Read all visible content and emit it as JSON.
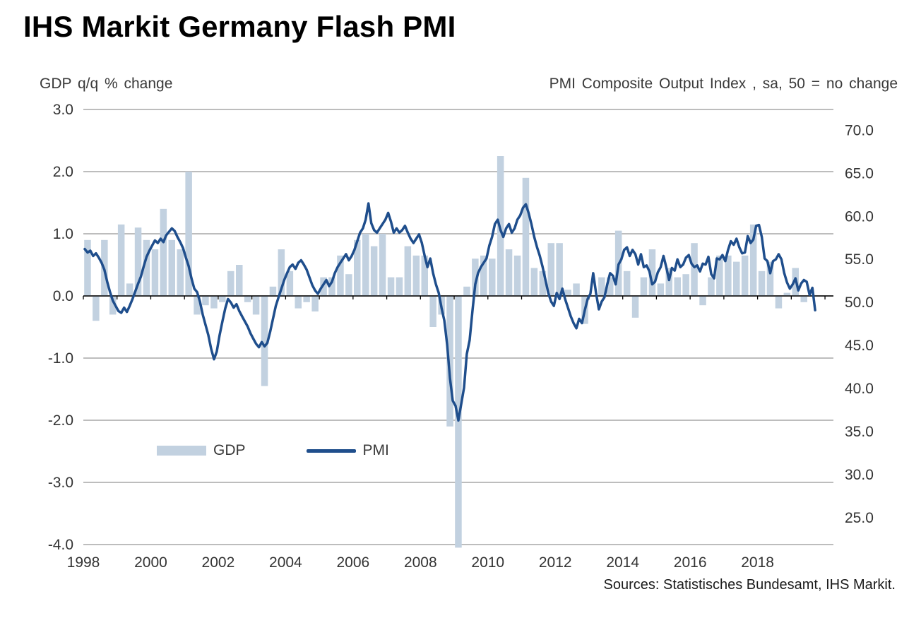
{
  "colors": {
    "bar": "#c2d1e0",
    "line": "#1f4e8c",
    "grid": "#bdbdbd",
    "axis": "#000000",
    "text": "#333333"
  },
  "chart_data": {
    "type": "combo_bar_line",
    "title": "IHS Markit Germany Flash PMI",
    "source": "Sources: Statistisches Bundesamt, IHS Markit.",
    "legend_position": "inside-lower-left",
    "grid": "horizontal",
    "left_axis": {
      "header": "GDP q/q % change",
      "min": -4,
      "max": 3,
      "step": 1
    },
    "right_axis": {
      "header": "PMI Composite Output Index , sa, 50 = no change",
      "min_label": 25,
      "max_label": 70,
      "step": 5,
      "plot_min": 21.9,
      "plot_max": 72.4
    },
    "x_axis": {
      "min": 1998,
      "max": 2020.25,
      "labels": [
        "1998",
        "2000",
        "2002",
        "2004",
        "2006",
        "2008",
        "2010",
        "2012",
        "2014",
        "2016",
        "2018"
      ]
    },
    "series": [
      {
        "name": "GDP",
        "type": "bar",
        "axis": "left",
        "frequency": "quarterly",
        "start": "1998Q1",
        "values": [
          0.9,
          -0.4,
          0.9,
          -0.3,
          1.15,
          0.2,
          1.1,
          0.9,
          0.75,
          1.4,
          0.9,
          0.75,
          2.0,
          -0.3,
          -0.15,
          -0.2,
          -0.1,
          0.4,
          0.5,
          -0.1,
          -0.3,
          -1.45,
          0.15,
          0.75,
          0.4,
          -0.2,
          -0.1,
          -0.25,
          0.3,
          0.3,
          0.65,
          0.35,
          0.9,
          1.0,
          0.8,
          1.0,
          0.3,
          0.3,
          0.8,
          0.65,
          0.65,
          -0.5,
          -0.3,
          -2.1,
          -4.05,
          0.15,
          0.6,
          0.65,
          0.6,
          2.25,
          0.75,
          0.65,
          1.9,
          0.45,
          0.4,
          0.85,
          0.85,
          0.1,
          0.2,
          -0.45,
          0.0,
          0.3,
          0.3,
          1.05,
          0.4,
          -0.35,
          0.3,
          0.75,
          0.2,
          0.45,
          0.3,
          0.35,
          0.85,
          -0.15,
          0.3,
          0.65,
          0.65,
          0.55,
          0.65,
          1.15,
          0.4,
          0.55,
          -0.2,
          0.05,
          0.45,
          -0.1
        ]
      },
      {
        "name": "PMI",
        "type": "line",
        "axis": "right",
        "frequency": "monthly",
        "start": "1998M01",
        "values": [
          56.2,
          55.8,
          56.0,
          55.4,
          55.7,
          55.2,
          54.6,
          53.8,
          52.4,
          51.2,
          50.2,
          49.6,
          49.0,
          48.8,
          49.4,
          48.9,
          49.6,
          50.4,
          51.3,
          52.2,
          53.0,
          54.2,
          55.3,
          56.0,
          56.6,
          57.2,
          56.9,
          57.4,
          57.0,
          57.8,
          58.2,
          58.6,
          58.3,
          57.6,
          57.0,
          56.3,
          55.2,
          54.2,
          52.8,
          51.6,
          51.2,
          50.1,
          48.6,
          47.4,
          46.2,
          44.6,
          43.4,
          44.3,
          46.2,
          47.8,
          49.3,
          50.4,
          50.0,
          49.4,
          49.8,
          49.0,
          48.4,
          47.8,
          47.2,
          46.4,
          45.8,
          45.2,
          44.8,
          45.4,
          44.9,
          45.3,
          46.6,
          48.1,
          49.6,
          50.6,
          51.6,
          52.6,
          53.4,
          54.1,
          54.4,
          53.9,
          54.6,
          54.9,
          54.4,
          53.8,
          52.9,
          52.0,
          51.4,
          51.0,
          51.6,
          52.1,
          52.6,
          51.9,
          52.4,
          53.4,
          54.1,
          54.6,
          55.1,
          55.6,
          54.9,
          55.4,
          56.1,
          57.1,
          58.1,
          58.6,
          59.6,
          61.5,
          59.2,
          58.4,
          58.1,
          58.6,
          59.1,
          59.6,
          60.4,
          59.4,
          58.1,
          58.6,
          58.1,
          58.4,
          58.9,
          58.1,
          57.4,
          56.9,
          57.4,
          57.9,
          56.9,
          55.4,
          54.1,
          55.1,
          53.4,
          52.1,
          51.1,
          49.4,
          47.9,
          45.1,
          41.2,
          38.6,
          38.0,
          36.3,
          38.2,
          40.1,
          44.0,
          45.6,
          49.0,
          52.1,
          53.4,
          54.1,
          54.6,
          55.1,
          56.6,
          57.6,
          59.1,
          59.6,
          58.4,
          57.6,
          58.6,
          59.1,
          58.1,
          58.6,
          59.6,
          60.1,
          61.0,
          61.4,
          60.4,
          59.1,
          57.6,
          56.4,
          55.4,
          54.1,
          52.6,
          51.1,
          50.1,
          49.6,
          51.1,
          50.4,
          51.6,
          50.4,
          49.4,
          48.4,
          47.6,
          47.0,
          48.1,
          47.6,
          49.1,
          50.4,
          51.0,
          53.4,
          51.1,
          49.2,
          50.1,
          50.6,
          52.1,
          53.4,
          53.1,
          52.1,
          54.4,
          55.0,
          56.1,
          56.4,
          55.4,
          56.1,
          55.6,
          54.4,
          55.6,
          54.1,
          54.3,
          53.6,
          52.1,
          52.4,
          53.5,
          54.1,
          55.4,
          54.1,
          52.6,
          54.0,
          53.7,
          55.0,
          54.1,
          54.4,
          55.2,
          55.5,
          54.5,
          54.1,
          54.3,
          53.6,
          54.5,
          54.4,
          55.3,
          53.3,
          52.8,
          55.1,
          55.0,
          55.5,
          54.8,
          56.1,
          57.1,
          56.7,
          57.4,
          56.4,
          55.7,
          55.8,
          57.7,
          56.9,
          57.3,
          58.9,
          59.0,
          57.6,
          55.1,
          54.8,
          53.4,
          54.8,
          55.0,
          55.6,
          55.0,
          53.4,
          52.3,
          51.6,
          52.1,
          52.8,
          51.4,
          52.2,
          52.6,
          52.4,
          50.9,
          51.7,
          49.1
        ]
      }
    ]
  }
}
